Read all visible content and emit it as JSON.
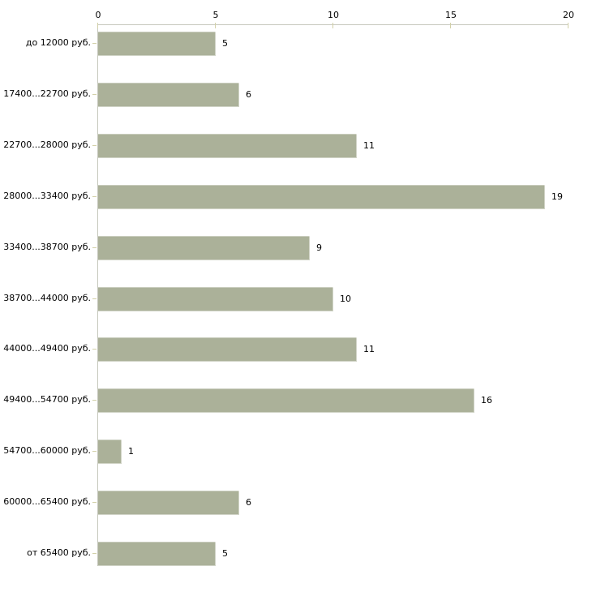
{
  "chart_data": {
    "type": "bar",
    "orientation": "horizontal",
    "title": "",
    "xlabel": "",
    "ylabel": "",
    "categories": [
      "до 12000 руб.",
      "17400...22700 руб.",
      "22700...28000 руб.",
      "28000...33400 руб.",
      "33400...38700 руб.",
      "38700...44000 руб.",
      "44000...49400 руб.",
      "49400...54700 руб.",
      "54700...60000 руб.",
      "60000...65400 руб.",
      "от 65400 руб."
    ],
    "values": [
      5,
      6,
      11,
      19,
      9,
      10,
      11,
      16,
      1,
      6,
      5
    ],
    "x_ticks": [
      0,
      5,
      10,
      15,
      20
    ],
    "xlim": [
      0,
      20
    ],
    "axis_position": "top",
    "grid": false,
    "legend": null,
    "colors": {
      "bar": "#abb199",
      "axis_line": "#c6c8bd",
      "tick": "#d2d0a8",
      "text": "#000000",
      "background": "#ffffff"
    }
  }
}
